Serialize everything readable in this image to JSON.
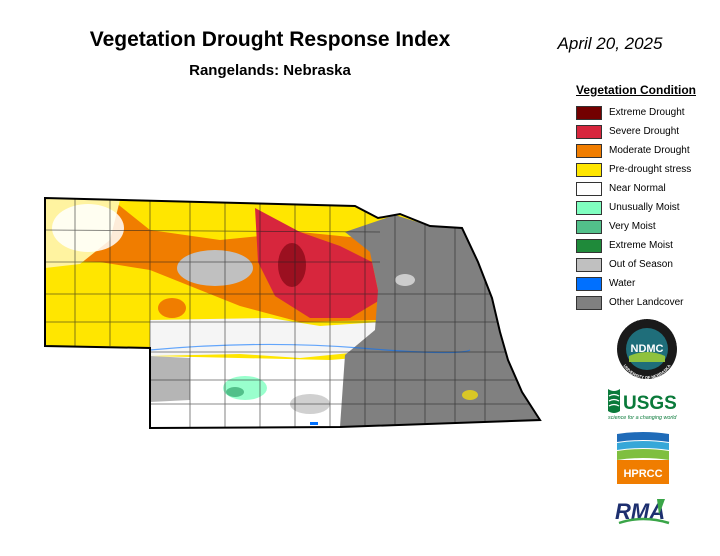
{
  "header": {
    "title": "Vegetation Drought Response Index",
    "subtitle": "Rangelands: Nebraska",
    "date": "April 20, 2025"
  },
  "legend": {
    "title": "Vegetation Condition",
    "items": [
      {
        "label": "Extreme Drought",
        "color": "#730000"
      },
      {
        "label": "Severe Drought",
        "color": "#d7263d"
      },
      {
        "label": "Moderate Drought",
        "color": "#f07d00"
      },
      {
        "label": "Pre-drought stress",
        "color": "#ffe600"
      },
      {
        "label": "Near Normal",
        "color": "#ffffff"
      },
      {
        "label": "Unusually Moist",
        "color": "#80ffc0"
      },
      {
        "label": "Very Moist",
        "color": "#52c08a"
      },
      {
        "label": "Extreme Moist",
        "color": "#1f8a3a"
      },
      {
        "label": "Out of Season",
        "color": "#c0c0c0"
      },
      {
        "label": "Water",
        "color": "#0070ff"
      },
      {
        "label": "Other Landcover",
        "color": "#808080"
      }
    ]
  },
  "logos": {
    "ndmc": {
      "abbr": "NDMC",
      "ring_top": "NATIONAL DROUGHT MITIGATION CENTER",
      "ring_bottom": "UNIVERSITY OF NEBRASKA"
    },
    "usgs": {
      "name": "USGS",
      "tagline": "science for a changing world"
    },
    "hprcc": {
      "name": "HPRCC"
    },
    "rma": {
      "name": "RMA"
    }
  }
}
